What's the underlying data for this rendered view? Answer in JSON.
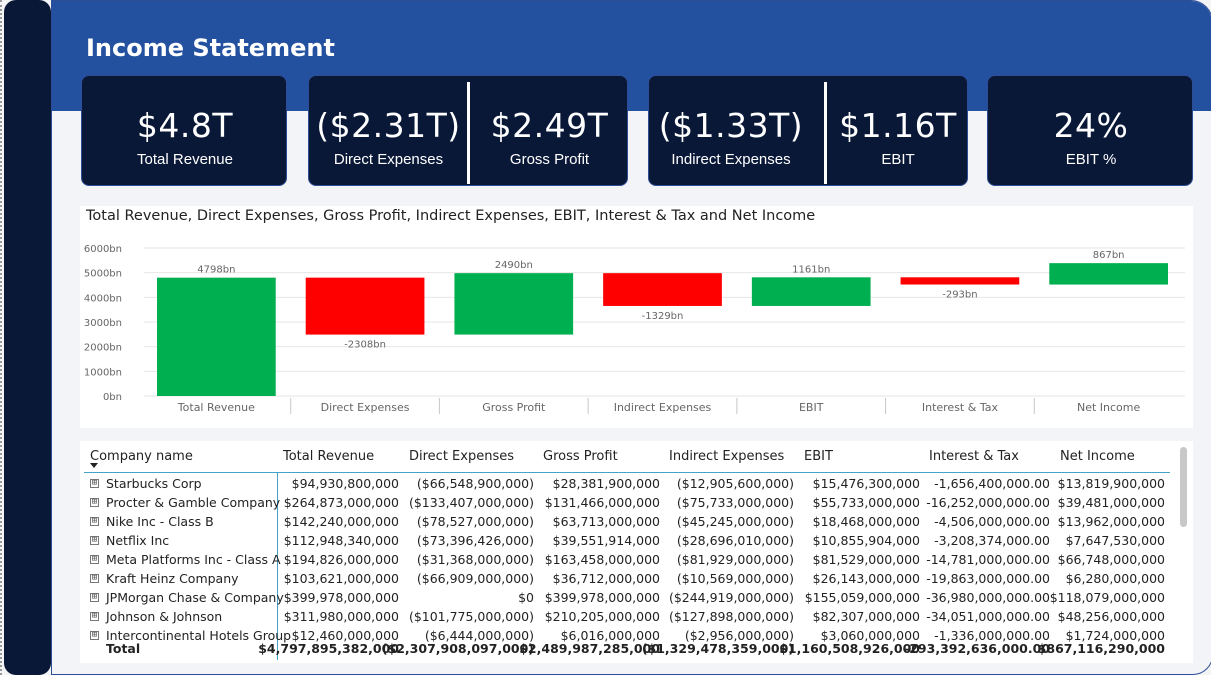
{
  "header": {
    "title": "Income Statement"
  },
  "kpis": {
    "total_revenue": {
      "value": "$4.8T",
      "label": "Total Revenue"
    },
    "direct_expenses": {
      "value": "($2.31T)",
      "label": "Direct Expenses"
    },
    "gross_profit": {
      "value": "$2.49T",
      "label": "Gross Profit"
    },
    "indirect_expenses": {
      "value": "($1.33T)",
      "label": "Indirect Expenses"
    },
    "ebit": {
      "value": "$1.16T",
      "label": "EBIT"
    },
    "ebit_pct": {
      "value": "24%",
      "label": "EBIT %"
    }
  },
  "chart_data": {
    "type": "bar",
    "title": "Total Revenue, Direct Expenses, Gross Profit, Indirect Expenses, EBIT, Interest & Tax and Net Income",
    "categories": [
      "Total Revenue",
      "Direct Expenses",
      "Gross Profit",
      "Indirect Expenses",
      "EBIT",
      "Interest & Tax",
      "Net Income"
    ],
    "values": [
      4798,
      -2308,
      2490,
      -1329,
      1161,
      -293,
      867
    ],
    "bar_ranges": [
      [
        0,
        4798
      ],
      [
        2490,
        4798
      ],
      [
        2490,
        4980
      ],
      [
        3651,
        4980
      ],
      [
        3651,
        4812
      ],
      [
        4519,
        4812
      ],
      [
        4519,
        5386
      ]
    ],
    "data_labels": [
      "4798bn",
      "-2308bn",
      "2490bn",
      "-1329bn",
      "1161bn",
      "-293bn",
      "867bn"
    ],
    "colors": [
      "#00b050",
      "#ff0000",
      "#00b050",
      "#ff0000",
      "#00b050",
      "#ff0000",
      "#00b050"
    ],
    "yticks": [
      "0bn",
      "1000bn",
      "2000bn",
      "3000bn",
      "4000bn",
      "5000bn",
      "6000bn"
    ],
    "ylim": [
      0,
      6000
    ],
    "grid": true
  },
  "table": {
    "columns": [
      "Company name",
      "Total Revenue",
      "Direct Expenses",
      "Gross Profit",
      "Indirect Expenses",
      "EBIT",
      "Interest & Tax",
      "Net Income"
    ],
    "rows": [
      [
        "Starbucks Corp",
        "$94,930,800,000",
        "($66,548,900,000)",
        "$28,381,900,000",
        "($12,905,600,000)",
        "$15,476,300,000",
        "-1,656,400,000.00",
        "$13,819,900,000"
      ],
      [
        "Procter & Gamble Company",
        "$264,873,000,000",
        "($133,407,000,000)",
        "$131,466,000,000",
        "($75,733,000,000)",
        "$55,733,000,000",
        "-16,252,000,000.00",
        "$39,481,000,000"
      ],
      [
        "Nike Inc - Class B",
        "$142,240,000,000",
        "($78,527,000,000)",
        "$63,713,000,000",
        "($45,245,000,000)",
        "$18,468,000,000",
        "-4,506,000,000.00",
        "$13,962,000,000"
      ],
      [
        "Netflix Inc",
        "$112,948,340,000",
        "($73,396,426,000)",
        "$39,551,914,000",
        "($28,696,010,000)",
        "$10,855,904,000",
        "-3,208,374,000.00",
        "$7,647,530,000"
      ],
      [
        "Meta Platforms Inc - Class A",
        "$194,826,000,000",
        "($31,368,000,000)",
        "$163,458,000,000",
        "($81,929,000,000)",
        "$81,529,000,000",
        "-14,781,000,000.00",
        "$66,748,000,000"
      ],
      [
        "Kraft Heinz Company",
        "$103,621,000,000",
        "($66,909,000,000)",
        "$36,712,000,000",
        "($10,569,000,000)",
        "$26,143,000,000",
        "-19,863,000,000.00",
        "$6,280,000,000"
      ],
      [
        "JPMorgan Chase & Company",
        "$399,978,000,000",
        "$0",
        "$399,978,000,000",
        "($244,919,000,000)",
        "$155,059,000,000",
        "-36,980,000,000.00",
        "$118,079,000,000"
      ],
      [
        "Johnson & Johnson",
        "$311,980,000,000",
        "($101,775,000,000)",
        "$210,205,000,000",
        "($127,898,000,000)",
        "$82,307,000,000",
        "-34,051,000,000.00",
        "$48,256,000,000"
      ],
      [
        "Intercontinental Hotels Group",
        "$12,460,000,000",
        "($6,444,000,000)",
        "$6,016,000,000",
        "($2,956,000,000)",
        "$3,060,000,000",
        "-1,336,000,000.00",
        "$1,724,000,000"
      ]
    ],
    "total": [
      "Total",
      "$4,797,895,382,000",
      "($2,307,908,097,000)",
      "$2,489,987,285,000",
      "($1,329,478,359,000)",
      "$1,160,508,926,000",
      "-293,392,636,000.00",
      "$867,116,290,000"
    ],
    "expand_glyph": "⊞"
  }
}
